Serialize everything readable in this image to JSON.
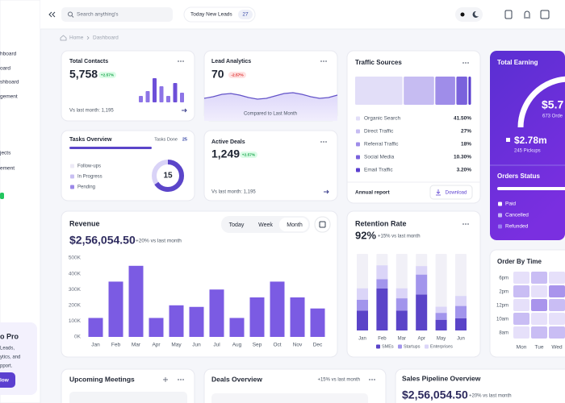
{
  "sidebar": {
    "items": [
      "hboard",
      "oard",
      "shboard",
      "gement",
      "jects",
      "ement"
    ],
    "promo": {
      "title": "o Pro",
      "lines": [
        "Leads,",
        "ytics, and",
        "pport."
      ],
      "button": "low"
    }
  },
  "topbar": {
    "search_placeholder": "Search anything's",
    "leads_label": "Today New Leads",
    "leads_count": "27"
  },
  "breadcrumb": [
    "Home",
    "Dashboard"
  ],
  "total_contacts": {
    "title": "Total Contacts",
    "value": "5,758",
    "change": "+2.57%",
    "footer": "Vs last month: 1,195",
    "bars": [
      8,
      14,
      30,
      20,
      8,
      24,
      12
    ]
  },
  "lead_analytics": {
    "title": "Lead Analytics",
    "value": "70",
    "change": "-2.57%",
    "footer": "Compared to Last Month",
    "line": [
      6,
      8,
      11,
      12,
      10,
      7,
      5,
      6,
      9,
      12,
      13,
      11,
      8,
      6,
      7,
      10
    ]
  },
  "traffic_sources": {
    "title": "Traffic Sources",
    "chart": {
      "type": "treemap",
      "categories": [
        "Organic Search",
        "Direct Traffic",
        "Referral Traffic",
        "Social Media",
        "Email Traffic"
      ],
      "values": [
        41.5,
        27,
        18,
        10.3,
        3.2
      ],
      "value_labels": [
        "41.50%",
        "27%",
        "18%",
        "10.30%",
        "3.20%"
      ],
      "colors": [
        "#e2def8",
        "#c6bcf2",
        "#9f8de9",
        "#7a62dc",
        "#5b3fcf"
      ]
    },
    "footer": "Annual report",
    "button": "Download"
  },
  "total_earning": {
    "title": "Total Earning",
    "amount": "$5.7",
    "orders": "673 Orde",
    "sub_amount": "$2.78m",
    "pickups": "245 Pickups",
    "status_title": "Orders Status",
    "statuses": [
      "Paid",
      "Cancelled",
      "Refunded"
    ]
  },
  "tasks_overview": {
    "title": "Tasks Overview",
    "done_label": "Tasks Done",
    "done_count": "25",
    "items": [
      "Follow-ups",
      "In Progress",
      "Pending"
    ],
    "center": "15"
  },
  "active_deals": {
    "title": "Active Deals",
    "value": "1,249",
    "change": "+2.57%",
    "footer": "Vs last month: 1,195"
  },
  "revenue": {
    "title": "Revenue",
    "tabs": [
      "Today",
      "Week",
      "Month"
    ],
    "amount": "$2,56,054.50",
    "change": "+20% vs last month",
    "chart": {
      "type": "bar",
      "categories": [
        "Jan",
        "Feb",
        "Mar",
        "Apr",
        "May",
        "Jun",
        "Jul",
        "Aug",
        "Sep",
        "Oct",
        "Nov",
        "Dec"
      ],
      "values": [
        120000,
        350000,
        450000,
        120000,
        200000,
        190000,
        300000,
        120000,
        250000,
        350000,
        250000,
        180000
      ],
      "color": "#7b5be3",
      "ylim": [
        0,
        500000
      ],
      "yticks": [
        {
          "value": 0,
          "label": "0K"
        },
        {
          "value": 100000,
          "label": "100K"
        },
        {
          "value": 200000,
          "label": "200K"
        },
        {
          "value": 300000,
          "label": "300K"
        },
        {
          "value": 400000,
          "label": "400K"
        },
        {
          "value": 500000,
          "label": "500K"
        }
      ],
      "grid": false
    }
  },
  "retention_rate": {
    "title": "Retention Rate",
    "value": "92%",
    "change": "+15% vs last month",
    "chart": {
      "type": "stacked-bar",
      "categories": [
        "Jan",
        "Feb",
        "Mar",
        "Apr",
        "May",
        "Jun"
      ],
      "series": [
        {
          "name": "SMEs",
          "color": "#5a44c8",
          "values": [
            26,
            55,
            26,
            47,
            14,
            16
          ]
        },
        {
          "name": "Startups",
          "color": "#a295ec",
          "values": [
            14,
            12,
            16,
            26,
            9,
            16
          ]
        },
        {
          "name": "Enterprises",
          "color": "#dbd5f8",
          "values": [
            15,
            18,
            13,
            11,
            8,
            13
          ]
        }
      ],
      "ylim": [
        0,
        100
      ]
    }
  },
  "order_by_time": {
    "title": "Order By Time",
    "rows": [
      "6pm",
      "2pm",
      "12pm",
      "10am",
      "8am"
    ],
    "cols": [
      "Mon",
      "Tue",
      "Wed",
      "T"
    ],
    "levels": [
      [
        1,
        2,
        1,
        2
      ],
      [
        2,
        1,
        3,
        2
      ],
      [
        1,
        3,
        2,
        1
      ],
      [
        2,
        1,
        1,
        3
      ],
      [
        1,
        2,
        2,
        1
      ]
    ],
    "colors": [
      "#ffffff",
      "#e6e0fa",
      "#c9bdf4",
      "#a994ec"
    ]
  },
  "upcoming_meetings": {
    "title": "Upcoming Meetings"
  },
  "deals_overview": {
    "title": "Deals Overview",
    "change": "+15% vs last month"
  },
  "sales_pipeline": {
    "title": "Sales Pipeline Overview",
    "amount": "$2,56,054.50",
    "change": "+20% vs last month"
  }
}
